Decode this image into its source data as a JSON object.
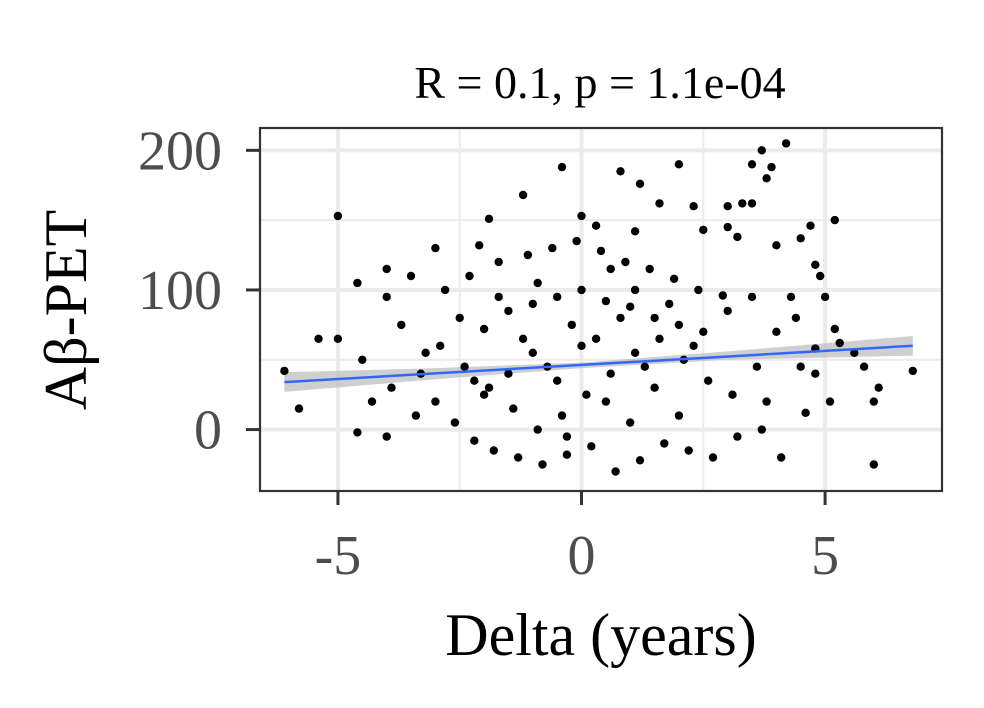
{
  "chart_data": {
    "type": "scatter",
    "title": "R = 0.1, p = 1.1e-04",
    "xlabel": "Delta (years)",
    "ylabel": "Aβ-PET",
    "xlim": [
      -6.6,
      7.4
    ],
    "ylim": [
      -44,
      216
    ],
    "x_ticks": [
      -5,
      0,
      5
    ],
    "x_tick_labels": [
      "-5",
      "0",
      "5"
    ],
    "y_ticks": [
      0,
      100,
      200
    ],
    "y_tick_labels": [
      "0",
      "100",
      "200"
    ],
    "x_minor_ticks": [
      -2.5,
      2.5
    ],
    "y_minor_ticks": [
      50,
      150
    ],
    "grid": true,
    "legend": "none",
    "point_color": "#000000",
    "fit_line_color": "#3366ff",
    "confidence_band_color": "#bfbfbf",
    "fit_line": {
      "x": [
        -6.1,
        6.8
      ],
      "y": [
        34,
        60
      ]
    },
    "confidence_band": {
      "x": [
        -6.1,
        -3,
        0,
        3,
        6.8
      ],
      "lower": [
        27,
        36,
        44,
        50,
        53
      ],
      "upper": [
        41,
        44,
        48,
        56,
        67
      ]
    },
    "series": [
      {
        "values": [
          [
            4.2,
            205
          ],
          [
            3.7,
            200
          ],
          [
            3.9,
            188
          ],
          [
            3.5,
            190
          ],
          [
            0.8,
            185
          ],
          [
            2.0,
            190
          ],
          [
            -0.4,
            188
          ],
          [
            1.2,
            176
          ],
          [
            3.8,
            180
          ],
          [
            -5.0,
            153
          ],
          [
            -1.9,
            151
          ],
          [
            0.0,
            153
          ],
          [
            0.3,
            146
          ],
          [
            -1.2,
            168
          ],
          [
            3.3,
            162
          ],
          [
            3.5,
            162
          ],
          [
            1.6,
            162
          ],
          [
            2.3,
            160
          ],
          [
            3.0,
            160
          ],
          [
            3.0,
            145
          ],
          [
            5.2,
            150
          ],
          [
            4.7,
            146
          ],
          [
            2.5,
            143
          ],
          [
            1.1,
            142
          ],
          [
            -2.1,
            132
          ],
          [
            -3.0,
            130
          ],
          [
            3.2,
            138
          ],
          [
            4.0,
            132
          ],
          [
            4.5,
            137
          ],
          [
            4.8,
            118
          ],
          [
            4.9,
            110
          ],
          [
            5.0,
            95
          ],
          [
            5.2,
            72
          ],
          [
            5.3,
            62
          ],
          [
            5.6,
            55
          ],
          [
            5.8,
            45
          ],
          [
            6.1,
            30
          ],
          [
            6.0,
            20
          ],
          [
            6.8,
            42
          ],
          [
            6.0,
            -25
          ],
          [
            5.1,
            20
          ],
          [
            4.8,
            58
          ],
          [
            4.3,
            95
          ],
          [
            4.4,
            80
          ],
          [
            4.6,
            12
          ],
          [
            3.8,
            20
          ],
          [
            4.5,
            45
          ],
          [
            -4.6,
            105
          ],
          [
            -4.0,
            115
          ],
          [
            -5.4,
            65
          ],
          [
            -5.0,
            65
          ],
          [
            -4.0,
            95
          ],
          [
            -5.8,
            15
          ],
          [
            -6.1,
            42
          ],
          [
            -4.5,
            50
          ],
          [
            -4.6,
            -2
          ],
          [
            -4.0,
            -5
          ],
          [
            -4.3,
            20
          ],
          [
            -3.5,
            110
          ],
          [
            -3.2,
            55
          ],
          [
            -2.5,
            80
          ],
          [
            -2.0,
            72
          ],
          [
            -1.5,
            85
          ],
          [
            -1.0,
            90
          ],
          [
            -0.5,
            95
          ],
          [
            0.0,
            100
          ],
          [
            0.5,
            92
          ],
          [
            1.0,
            88
          ],
          [
            1.5,
            80
          ],
          [
            2.0,
            75
          ],
          [
            2.5,
            70
          ],
          [
            3.0,
            85
          ],
          [
            3.5,
            95
          ],
          [
            4.0,
            70
          ],
          [
            4.8,
            40
          ],
          [
            -3.7,
            75
          ],
          [
            -3.3,
            40
          ],
          [
            -3.0,
            20
          ],
          [
            -2.6,
            5
          ],
          [
            -2.2,
            -8
          ],
          [
            -1.8,
            -15
          ],
          [
            -1.3,
            -20
          ],
          [
            -0.8,
            -25
          ],
          [
            -0.3,
            -18
          ],
          [
            0.2,
            -12
          ],
          [
            0.7,
            -30
          ],
          [
            1.2,
            -22
          ],
          [
            1.7,
            -10
          ],
          [
            2.2,
            -15
          ],
          [
            2.7,
            -20
          ],
          [
            3.2,
            -5
          ],
          [
            3.7,
            0
          ],
          [
            4.1,
            -20
          ],
          [
            -2.8,
            100
          ],
          [
            -2.3,
            110
          ],
          [
            -1.7,
            120
          ],
          [
            -1.1,
            125
          ],
          [
            -0.6,
            130
          ],
          [
            -0.1,
            135
          ],
          [
            0.4,
            128
          ],
          [
            0.9,
            120
          ],
          [
            1.4,
            115
          ],
          [
            1.9,
            108
          ],
          [
            2.4,
            100
          ],
          [
            2.9,
            96
          ],
          [
            -3.9,
            30
          ],
          [
            -3.4,
            10
          ],
          [
            -2.9,
            60
          ],
          [
            -2.4,
            45
          ],
          [
            -1.9,
            30
          ],
          [
            -1.4,
            15
          ],
          [
            -0.9,
            0
          ],
          [
            -0.4,
            10
          ],
          [
            0.1,
            25
          ],
          [
            0.6,
            40
          ],
          [
            1.1,
            55
          ],
          [
            1.6,
            65
          ],
          [
            2.1,
            50
          ],
          [
            2.6,
            35
          ],
          [
            3.1,
            25
          ],
          [
            3.6,
            45
          ],
          [
            -1.0,
            55
          ],
          [
            -0.5,
            35
          ],
          [
            0.0,
            60
          ],
          [
            0.5,
            20
          ],
          [
            1.0,
            5
          ],
          [
            -1.5,
            40
          ],
          [
            -2.0,
            25
          ],
          [
            1.5,
            30
          ],
          [
            2.0,
            10
          ],
          [
            -0.2,
            75
          ],
          [
            0.3,
            65
          ],
          [
            -0.7,
            45
          ],
          [
            0.8,
            80
          ],
          [
            -1.2,
            65
          ],
          [
            1.3,
            45
          ],
          [
            -1.7,
            95
          ],
          [
            1.8,
            90
          ],
          [
            -2.2,
            35
          ],
          [
            2.3,
            60
          ],
          [
            -0.3,
            -5
          ],
          [
            0.6,
            115
          ],
          [
            -0.9,
            105
          ],
          [
            1.1,
            100
          ]
        ]
      }
    ]
  }
}
